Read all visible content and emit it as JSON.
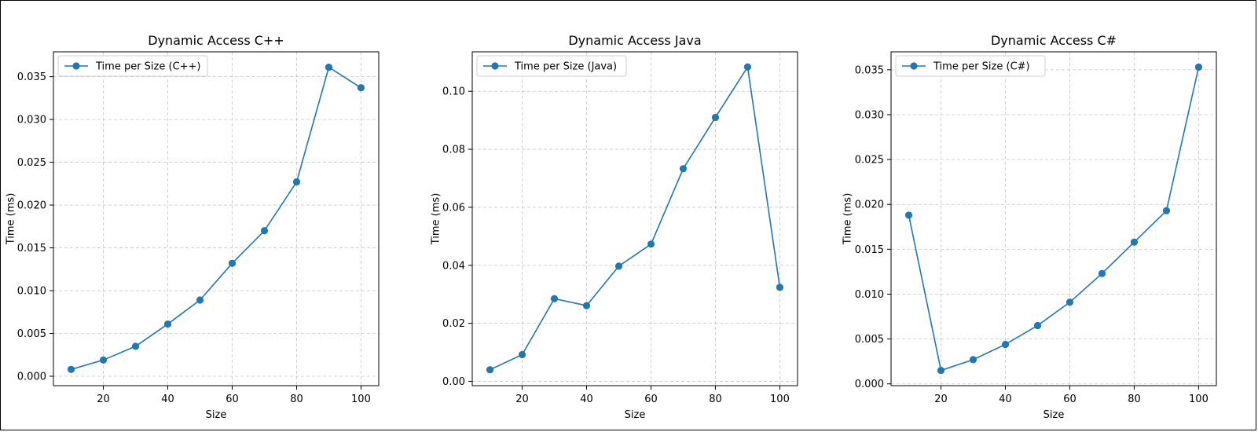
{
  "chart_data": [
    {
      "type": "line",
      "title": "Dynamic Access C++",
      "xlabel": "Size",
      "ylabel": "Time (ms)",
      "x": [
        10,
        20,
        30,
        40,
        50,
        60,
        70,
        80,
        90,
        100
      ],
      "series": [
        {
          "name": "Time per Size (C++)",
          "values": [
            0.0008,
            0.0019,
            0.0035,
            0.0061,
            0.0089,
            0.0132,
            0.017,
            0.0227,
            0.0361,
            0.0337
          ]
        }
      ],
      "xlim": [
        4.5,
        105.5
      ],
      "ylim": [
        -0.0011,
        0.0379
      ],
      "xticks": [
        20,
        40,
        60,
        80,
        100
      ],
      "xtick_labels": [
        "20",
        "40",
        "60",
        "80",
        "100"
      ],
      "yticks": [
        0.0,
        0.005,
        0.01,
        0.015,
        0.02,
        0.025,
        0.03,
        0.035
      ],
      "ytick_labels": [
        "0.000",
        "0.005",
        "0.010",
        "0.015",
        "0.020",
        "0.025",
        "0.030",
        "0.035"
      ],
      "grid": true,
      "legend": "upper left",
      "color": "#1f77b4"
    },
    {
      "type": "line",
      "title": "Dynamic Access Java",
      "xlabel": "Size",
      "ylabel": "Time (ms)",
      "x": [
        10,
        20,
        30,
        40,
        50,
        60,
        70,
        80,
        90,
        100
      ],
      "series": [
        {
          "name": "Time per Size (Java)",
          "values": [
            0.004,
            0.0092,
            0.0285,
            0.0261,
            0.0397,
            0.0473,
            0.0733,
            0.091,
            0.1084,
            0.0324
          ]
        }
      ],
      "xlim": [
        4.5,
        105.5
      ],
      "ylim": [
        -0.0015,
        0.1136
      ],
      "xticks": [
        20,
        40,
        60,
        80,
        100
      ],
      "xtick_labels": [
        "20",
        "40",
        "60",
        "80",
        "100"
      ],
      "yticks": [
        0.0,
        0.02,
        0.04,
        0.06,
        0.08,
        0.1
      ],
      "ytick_labels": [
        "0.00",
        "0.02",
        "0.04",
        "0.06",
        "0.08",
        "0.10"
      ],
      "grid": true,
      "legend": "upper left",
      "color": "#1f77b4"
    },
    {
      "type": "line",
      "title": "Dynamic Access C#",
      "xlabel": "Size",
      "ylabel": "Time (ms)",
      "x": [
        10,
        20,
        30,
        40,
        50,
        60,
        70,
        80,
        90,
        100
      ],
      "series": [
        {
          "name": "Time per Size (C#)",
          "values": [
            0.0188,
            0.0015,
            0.0027,
            0.0044,
            0.0065,
            0.0091,
            0.0123,
            0.0158,
            0.0193,
            0.0353
          ]
        }
      ],
      "xlim": [
        4.5,
        105.5
      ],
      "ylim": [
        -0.0002,
        0.037
      ],
      "xticks": [
        20,
        40,
        60,
        80,
        100
      ],
      "xtick_labels": [
        "20",
        "40",
        "60",
        "80",
        "100"
      ],
      "yticks": [
        0.0,
        0.005,
        0.01,
        0.015,
        0.02,
        0.025,
        0.03,
        0.035
      ],
      "ytick_labels": [
        "0.000",
        "0.005",
        "0.010",
        "0.015",
        "0.020",
        "0.025",
        "0.030",
        "0.035"
      ],
      "grid": true,
      "legend": "upper left",
      "color": "#1f77b4"
    }
  ]
}
